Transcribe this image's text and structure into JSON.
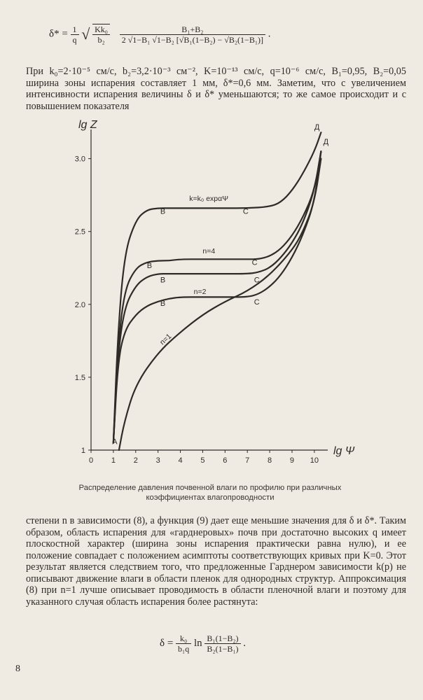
{
  "formula_top": {
    "lhs": "δ* =",
    "coef_num": "1",
    "coef_den": "q",
    "root_num": "Kk₀",
    "root_den": "b₂",
    "main_num": "B₁+B₂",
    "main_den": "2 √1−B₁ √1−B₂ [√B₁(1−B₂) − √B₂(1−B₁)]",
    "trail": "."
  },
  "para1": "При k₀=2·10⁻⁵ см/с, b₂=3,2·10⁻³ см⁻², K=10⁻¹³ см/с, q=10⁻⁶ см/с, B₁=0,95, B₂=0,05 ширина зоны испарения составляет 1 мм, δ*=0,6 мм. Заметим, что с увеличением интенсивности испарения величины δ и δ* уменьшаются; то же самое происходит и с повышением показателя",
  "caption": "Распределение давления почвенной влаги по профилю при различных коэффициентах влагопроводности",
  "para2": "степени n в зависимости (8), а функция (9) дает еще меньшие значения для δ и δ*. Таким образом, область испарения для «гарднеровых» почв при достаточно высоких q имеет плоскостной характер (ширина зоны испарения практически равна нулю), и ее положение совпадает с положением асимптоты соответствующих кривых при K=0. Этот результат является следствием того, что предложенные Гарднером зависимости k(p) не описывают движение влаги в области пленок для однородных структур. Аппроксимация (8) при n=1 лучше описывает проводимость в области пленочной влаги и поэтому для указанного случая область испарения более растянута:",
  "formula_bottom": {
    "lhs": "δ =",
    "coef_num": "k₀",
    "coef_den": "b₁q",
    "ln": "ln",
    "arg_num": "B₁(1−B₂)",
    "arg_den": "B₂(1−B₁)",
    "trail": "."
  },
  "page_number": "8",
  "chart_data": {
    "type": "line",
    "title": "",
    "xlabel": "lg Ψ",
    "ylabel": "lg Z",
    "xlim": [
      0,
      10.6
    ],
    "ylim": [
      1,
      3.2
    ],
    "x_ticks": [
      "0",
      "1",
      "2",
      "3",
      "4",
      "5",
      "6",
      "7",
      "8",
      "9",
      "10"
    ],
    "y_ticks": [
      "1",
      "1.5",
      "2.0",
      "2.5",
      "3.0"
    ],
    "grid": false,
    "series": [
      {
        "name": "k=k₀ expαΨ",
        "x": [
          1.0,
          1.2,
          1.5,
          2.0,
          2.5,
          3.0,
          3.5,
          4.0,
          5.0,
          6.0,
          7.0,
          8.0,
          8.5,
          9.0,
          9.5,
          10.0,
          10.3
        ],
        "y": [
          1.05,
          1.8,
          2.35,
          2.58,
          2.65,
          2.66,
          2.66,
          2.66,
          2.66,
          2.66,
          2.66,
          2.67,
          2.7,
          2.78,
          2.9,
          3.05,
          3.18
        ]
      },
      {
        "name": "n=4",
        "x": [
          1.0,
          1.2,
          1.5,
          2.0,
          2.5,
          3.0,
          3.5,
          4.0,
          5.0,
          6.0,
          7.0,
          7.5,
          8.0,
          8.5,
          9.0,
          9.5,
          10.0,
          10.3
        ],
        "y": [
          1.05,
          1.7,
          2.1,
          2.25,
          2.29,
          2.3,
          2.3,
          2.31,
          2.31,
          2.31,
          2.31,
          2.31,
          2.33,
          2.38,
          2.47,
          2.6,
          2.78,
          3.05
        ]
      },
      {
        "name": "n=2",
        "x": [
          1.0,
          1.2,
          1.5,
          2.0,
          2.5,
          3.0,
          3.5,
          4.0,
          5.0,
          6.0,
          7.0,
          7.5,
          8.0,
          8.5,
          9.0,
          9.5,
          10.0,
          10.3
        ],
        "y": [
          1.05,
          1.65,
          1.98,
          2.13,
          2.19,
          2.21,
          2.21,
          2.21,
          2.21,
          2.21,
          2.21,
          2.22,
          2.25,
          2.32,
          2.42,
          2.56,
          2.78,
          3.05
        ]
      },
      {
        "name": "",
        "x": [
          1.0,
          1.2,
          1.5,
          2.0,
          2.5,
          3.0,
          3.5,
          4.0,
          5.0,
          6.0,
          7.0,
          7.5,
          8.0,
          8.5,
          9.0,
          9.5,
          10.0,
          10.3
        ],
        "y": [
          1.05,
          1.6,
          1.82,
          1.93,
          1.99,
          2.02,
          2.04,
          2.05,
          2.05,
          2.05,
          2.05,
          2.07,
          2.12,
          2.2,
          2.32,
          2.48,
          2.7,
          3.05
        ]
      },
      {
        "name": "n=1",
        "x": [
          1.25,
          1.5,
          2.0,
          3.0,
          4.0,
          5.0,
          6.0,
          7.0,
          8.0,
          9.0,
          9.5,
          10.0,
          10.3
        ],
        "y": [
          1.0,
          1.2,
          1.45,
          1.67,
          1.81,
          1.93,
          2.02,
          2.09,
          2.2,
          2.37,
          2.5,
          2.7,
          3.0
        ]
      }
    ],
    "annotations": [
      "В",
      "С",
      "В",
      "С",
      "В",
      "С",
      "В",
      "С",
      "Д",
      "Д",
      "А"
    ]
  }
}
